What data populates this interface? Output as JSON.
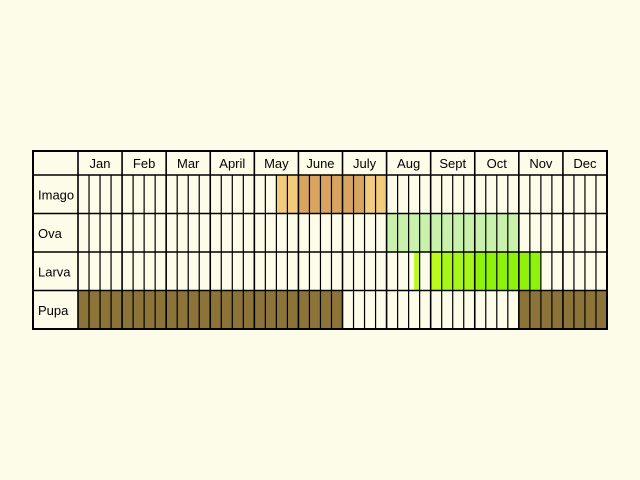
{
  "chart_data": {
    "type": "table",
    "months": [
      "Jan",
      "Feb",
      "Mar",
      "April",
      "May",
      "June",
      "July",
      "Aug",
      "Sept",
      "Oct",
      "Nov",
      "Dec"
    ],
    "period_unit": "quarter-month",
    "periods_per_month": 4,
    "stages": [
      {
        "name": "Imago",
        "color": "#f3cb7c",
        "segments": [
          {
            "start": 18,
            "end": 20,
            "color": "#f3cb7c"
          },
          {
            "start": 20,
            "end": 22,
            "color": "#d8a460"
          },
          {
            "start": 22,
            "end": 24,
            "color": "#d8a460"
          },
          {
            "start": 24,
            "end": 26,
            "color": "#d8a460"
          },
          {
            "start": 26,
            "end": 26.5,
            "color": "#f3cb7c"
          },
          {
            "start": 26.5,
            "end": 28,
            "color": "#f3cb7c"
          }
        ]
      },
      {
        "name": "Ova",
        "color": "#c9f1ab",
        "segments": [
          {
            "start": 28,
            "end": 40,
            "color": "#c9f1ab"
          }
        ]
      },
      {
        "name": "Larva",
        "color": "#8ff20a",
        "segments": [
          {
            "start": 30.5,
            "end": 31,
            "color": "#bdf91a"
          },
          {
            "start": 32,
            "end": 33,
            "color": "#bdf91a"
          },
          {
            "start": 33,
            "end": 34,
            "color": "#a8f51a"
          },
          {
            "start": 34,
            "end": 36,
            "color": "#a8f51a"
          },
          {
            "start": 36,
            "end": 38,
            "color": "#8ff20a"
          },
          {
            "start": 38,
            "end": 40,
            "color": "#8ff20a"
          },
          {
            "start": 40,
            "end": 42,
            "color": "#8ff20a"
          }
        ]
      },
      {
        "name": "Pupa",
        "color": "#8c7338",
        "segments": [
          {
            "start": 0,
            "end": 24,
            "color": "#8c7338"
          },
          {
            "start": 40,
            "end": 48,
            "color": "#8c7338"
          }
        ]
      }
    ]
  }
}
